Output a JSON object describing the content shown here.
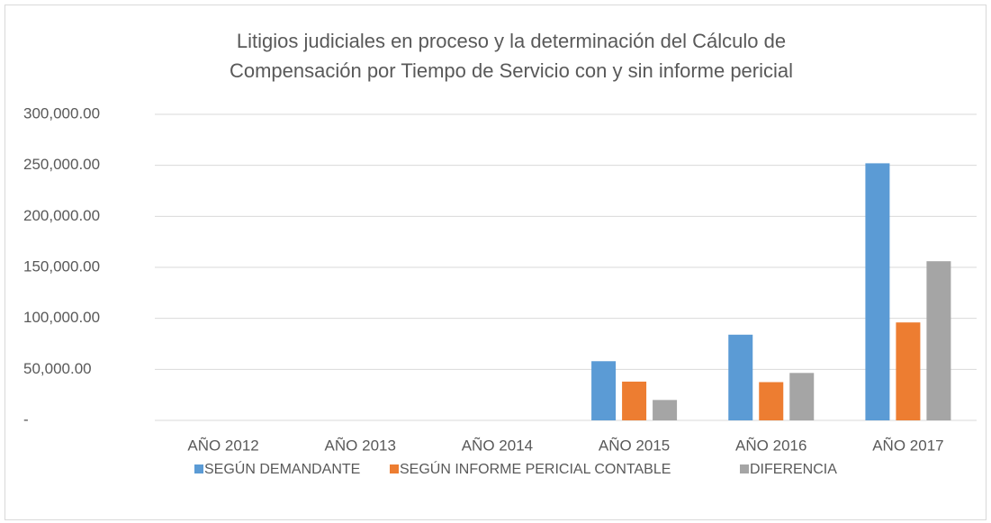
{
  "chart_data": {
    "type": "bar",
    "title": [
      "Litigios judiciales en proceso y la determinación del Cálculo de",
      "Compensación por Tiempo de Servicio con y sin informe pericial"
    ],
    "categories": [
      "AÑO 2012",
      "AÑO 2013",
      "AÑO 2014",
      "AÑO 2015",
      "AÑO 2016",
      "AÑO 2017"
    ],
    "series": [
      {
        "name": "SEGÚN DEMANDANTE",
        "color": "#5b9bd5",
        "values": [
          0,
          0,
          0,
          58000,
          84000,
          252000
        ]
      },
      {
        "name": "SEGÚN INFORME PERICIAL CONTABLE",
        "color": "#ed7d31",
        "values": [
          0,
          0,
          0,
          38000,
          37500,
          96000
        ]
      },
      {
        "name": "DIFERENCIA",
        "color": "#a5a5a5",
        "values": [
          0,
          0,
          0,
          20000,
          46500,
          156000
        ]
      }
    ],
    "ylim": [
      0,
      300000
    ],
    "yticks": [
      {
        "value": 0,
        "label": "-"
      },
      {
        "value": 50000,
        "label": "50,000.00"
      },
      {
        "value": 100000,
        "label": "100,000.00"
      },
      {
        "value": 150000,
        "label": "150,000.00"
      },
      {
        "value": 200000,
        "label": "200,000.00"
      },
      {
        "value": 250000,
        "label": "250,000.00"
      },
      {
        "value": 300000,
        "label": "300,000.00"
      }
    ],
    "grid": true,
    "legend": "bottom"
  }
}
